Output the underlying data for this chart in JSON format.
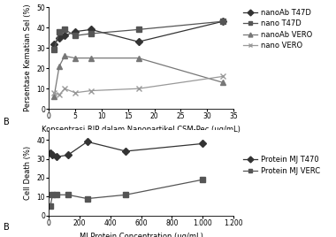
{
  "chart_A": {
    "xlabel": "Konsentrasi RIP dalam Nanopartikel CSM-Pec (μg/mL)",
    "ylabel": "Persentase Kematian Sel (%)",
    "xlim": [
      0,
      35
    ],
    "ylim": [
      0,
      50
    ],
    "yticks": [
      0,
      10,
      20,
      30,
      40,
      50
    ],
    "xticks": [
      0,
      5,
      10,
      15,
      20,
      25,
      30,
      35
    ],
    "series": [
      {
        "label": "nanoAb T47D",
        "x": [
          1,
          2,
          3,
          5,
          8,
          17,
          33
        ],
        "y": [
          32,
          35,
          36,
          38,
          39,
          33,
          43
        ],
        "marker": "D",
        "color": "#333333"
      },
      {
        "label": "nano T47D",
        "x": [
          1,
          2,
          3,
          5,
          8,
          17,
          33
        ],
        "y": [
          29,
          38,
          39,
          36,
          37,
          39,
          43
        ],
        "marker": "s",
        "color": "#555555"
      },
      {
        "label": "nanoAb VERO",
        "x": [
          1,
          2,
          3,
          5,
          8,
          17,
          33
        ],
        "y": [
          6,
          21,
          26,
          25,
          25,
          25,
          13
        ],
        "marker": "^",
        "color": "#777777"
      },
      {
        "label": "nano VERO",
        "x": [
          1,
          2,
          3,
          5,
          8,
          17,
          33
        ],
        "y": [
          8,
          7,
          10,
          8,
          9,
          10,
          16
        ],
        "marker": "x",
        "color": "#999999"
      }
    ]
  },
  "chart_B": {
    "xlabel": "MJ Protein Concentration (μg/mL)",
    "ylabel": "Cell Death (%)",
    "xlim": [
      0,
      1200
    ],
    "ylim": [
      0,
      45
    ],
    "yticks": [
      0,
      10,
      20,
      30,
      40
    ],
    "xticks": [
      0,
      200,
      400,
      600,
      800,
      1000,
      1200
    ],
    "xticklabels": [
      "0",
      "200",
      "400",
      "600",
      "800",
      "1.000",
      "1.200"
    ],
    "series": [
      {
        "label": "Protein MJ T470",
        "x": [
          10,
          25,
          50,
          125,
          250,
          500,
          1000
        ],
        "y": [
          33,
          32,
          31,
          32,
          39,
          34,
          38
        ],
        "marker": "D",
        "color": "#333333"
      },
      {
        "label": "Protein MJ VERC",
        "x": [
          10,
          25,
          50,
          125,
          250,
          500,
          1000
        ],
        "y": [
          5,
          11,
          11,
          11,
          9,
          11,
          19
        ],
        "marker": "s",
        "color": "#555555"
      }
    ]
  },
  "bg_color": "#ffffff",
  "label_fontsize": 6.0,
  "tick_fontsize": 5.5,
  "legend_fontsize": 6.0,
  "marker_size": 4,
  "linewidth": 0.9
}
